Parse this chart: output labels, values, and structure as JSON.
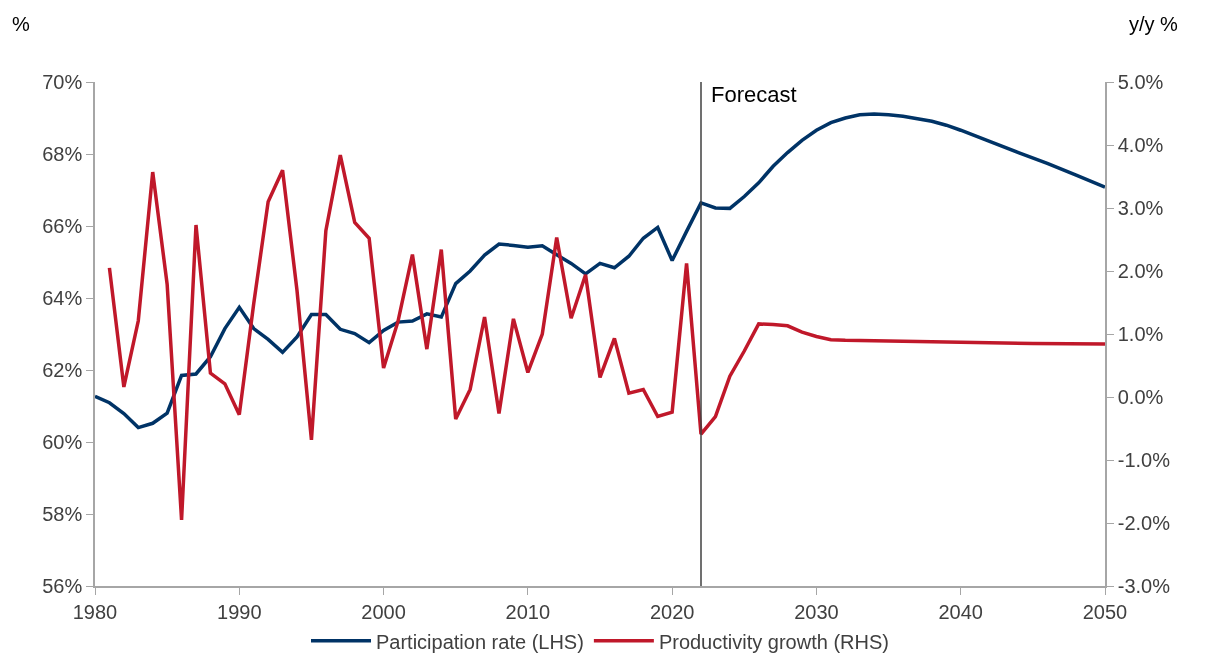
{
  "chart_data": {
    "type": "line",
    "ylabel": "%",
    "y2label": "y/y %",
    "xlim": [
      1980,
      2050
    ],
    "xticks": [
      1980,
      1990,
      2000,
      2010,
      2020,
      2030,
      2040,
      2050
    ],
    "ylim": [
      56,
      70
    ],
    "yticks": [
      {
        "value": 56,
        "label": "56%"
      },
      {
        "value": 58,
        "label": "58%"
      },
      {
        "value": 60,
        "label": "60%"
      },
      {
        "value": 62,
        "label": "62%"
      },
      {
        "value": 64,
        "label": "64%"
      },
      {
        "value": 66,
        "label": "66%"
      },
      {
        "value": 68,
        "label": "68%"
      },
      {
        "value": 70,
        "label": "70%"
      }
    ],
    "y2lim": [
      -3,
      5
    ],
    "y2ticks": [
      {
        "value": -3,
        "label": "-3.0%"
      },
      {
        "value": -2,
        "label": "-2.0%"
      },
      {
        "value": -1,
        "label": "-1.0%"
      },
      {
        "value": 0,
        "label": "0.0%"
      },
      {
        "value": 1,
        "label": "1.0%"
      },
      {
        "value": 2,
        "label": "2.0%"
      },
      {
        "value": 3,
        "label": "3.0%"
      },
      {
        "value": 4,
        "label": "4.0%"
      },
      {
        "value": 5,
        "label": "5.0%"
      }
    ],
    "legend": "bottom",
    "marker": "none",
    "line_style": "solid",
    "ref_lines": [
      {
        "axis": "x",
        "value": 2022,
        "label": "Forecast",
        "color": "#404040"
      }
    ],
    "series": [
      {
        "name": "Participation rate (LHS)",
        "color": "#003366",
        "x": [
          1980,
          1981,
          1982,
          1983,
          1984,
          1985,
          1986,
          1987,
          1988,
          1989,
          1990,
          1991,
          1992,
          1993,
          1994,
          1995,
          1996,
          1997,
          1998,
          1999,
          2000,
          2001,
          2002,
          2003,
          2004,
          2005,
          2006,
          2007,
          2008,
          2009,
          2010,
          2011,
          2012,
          2013,
          2014,
          2015,
          2016,
          2017,
          2018,
          2019,
          2020,
          2021,
          2022,
          2023,
          2024,
          2025,
          2026,
          2027,
          2028,
          2029,
          2030,
          2031,
          2032,
          2033,
          2034,
          2035,
          2036,
          2037,
          2038,
          2039,
          2040,
          2042,
          2044,
          2046,
          2048,
          2050
        ],
        "values": [
          61.27,
          61.09,
          60.79,
          60.4,
          60.52,
          60.8,
          61.85,
          61.89,
          62.37,
          63.15,
          63.74,
          63.15,
          62.85,
          62.49,
          62.92,
          63.54,
          63.54,
          63.13,
          63.01,
          62.76,
          63.1,
          63.33,
          63.36,
          63.56,
          63.47,
          64.4,
          64.75,
          65.19,
          65.5,
          65.46,
          65.41,
          65.45,
          65.2,
          64.96,
          64.67,
          64.96,
          64.84,
          65.16,
          65.66,
          65.96,
          65.04,
          65.85,
          66.64,
          66.5,
          66.49,
          66.82,
          67.2,
          67.66,
          68.04,
          68.38,
          68.66,
          68.87,
          69.0,
          69.09,
          69.11,
          69.09,
          69.05,
          68.98,
          68.91,
          68.8,
          68.66,
          68.35,
          68.04,
          67.74,
          67.41,
          67.08
        ]
      },
      {
        "name": "Productivity growth (RHS)",
        "color": "#c0182a",
        "axis": "y2",
        "x": [
          1981,
          1982,
          1983,
          1984,
          1985,
          1986,
          1987,
          1988,
          1989,
          1990,
          1991,
          1992,
          1993,
          1994,
          1995,
          1996,
          1997,
          1998,
          1999,
          2000,
          2001,
          2002,
          2003,
          2004,
          2005,
          2006,
          2007,
          2008,
          2009,
          2010,
          2011,
          2012,
          2013,
          2014,
          2015,
          2016,
          2017,
          2018,
          2019,
          2020,
          2021,
          2022,
          2023,
          2024,
          2025,
          2026,
          2027,
          2028,
          2029,
          2030,
          2031,
          2032,
          2035,
          2040,
          2045,
          2050
        ],
        "values": [
          2.05,
          0.16,
          1.21,
          3.57,
          1.79,
          -1.95,
          2.73,
          0.38,
          0.21,
          -0.28,
          1.48,
          3.1,
          3.6,
          1.69,
          -0.68,
          2.64,
          3.84,
          2.77,
          2.52,
          0.46,
          1.2,
          2.26,
          0.76,
          2.34,
          -0.35,
          0.12,
          1.27,
          -0.26,
          1.24,
          0.39,
          1.0,
          2.53,
          1.25,
          1.94,
          0.31,
          0.93,
          0.06,
          0.12,
          -0.31,
          -0.24,
          2.12,
          -0.59,
          -0.31,
          0.33,
          0.73,
          1.16,
          1.15,
          1.13,
          1.03,
          0.96,
          0.91,
          0.9,
          0.89,
          0.87,
          0.85,
          0.84
        ]
      }
    ]
  }
}
